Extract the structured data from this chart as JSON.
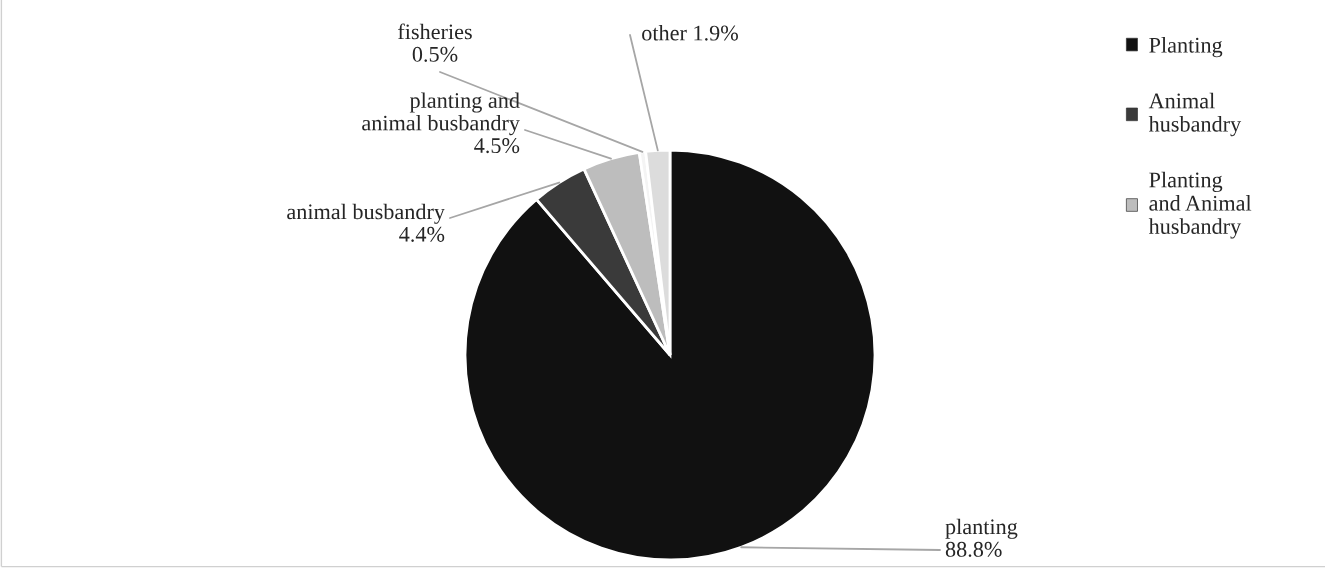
{
  "chart_data": {
    "type": "pie",
    "categories": [
      "Planting",
      "Animal\nhusbandry",
      "Planting\nand Animal\nhusbandry",
      null,
      null
    ],
    "values": [
      88.8,
      4.4,
      4.5,
      0.5,
      1.9
    ],
    "value_labels": [
      "planting\n88.8%",
      "animal busbandry\n4.4%",
      "planting and\nanimal busbandry\n4.5%",
      "fisheries\n0.5%",
      "other 1.9%"
    ],
    "colors": [
      "#111111",
      "#3a3a3a",
      "#bdbdbd",
      "#f4f4f4",
      "#dcdcdc"
    ],
    "legend": "right"
  }
}
